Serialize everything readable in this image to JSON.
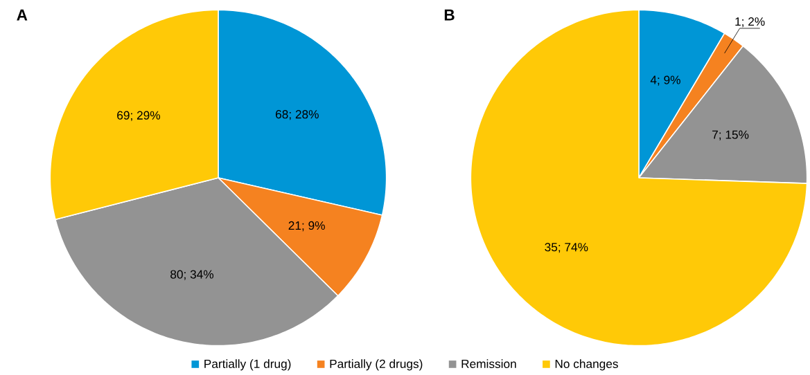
{
  "chart_data": [
    {
      "type": "pie",
      "title": "A",
      "categories": [
        "Partially (1 drug)",
        "Partially (2 drugs)",
        "Remission",
        "No changes"
      ],
      "values": [
        68,
        21,
        80,
        69
      ],
      "value_labels": [
        "68; 28%",
        "21; 9%",
        "80; 34%",
        "69; 29%"
      ],
      "colors": [
        "#0096d6",
        "#f58220",
        "#939393",
        "#ffc907"
      ],
      "legend": "bottom"
    },
    {
      "type": "pie",
      "title": "B",
      "categories": [
        null,
        null,
        null,
        null
      ],
      "values": [
        4,
        1,
        7,
        35
      ],
      "value_labels": [
        "4; 9%",
        "1; 2%",
        "7; 15%",
        "35; 74%"
      ],
      "colors": [
        "#0096d6",
        "#f58220",
        "#939393",
        "#ffc907"
      ]
    }
  ]
}
